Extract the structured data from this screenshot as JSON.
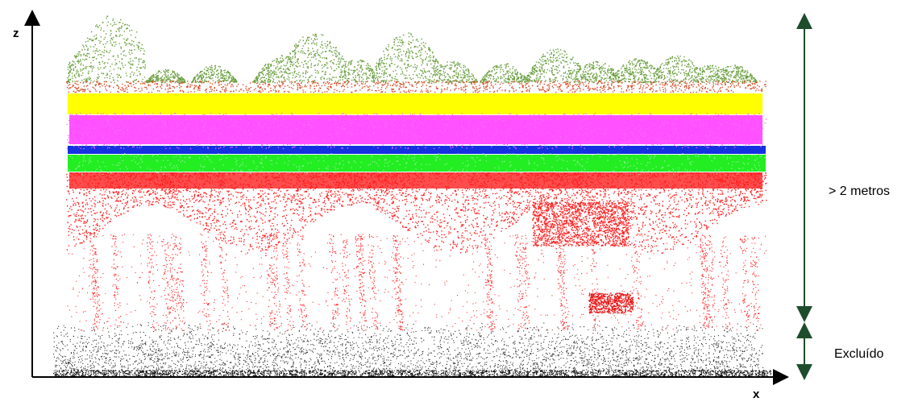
{
  "axes": {
    "z": "z",
    "x": "x"
  },
  "annotations": {
    "upper": "> 2 metros",
    "lower": "Excluído"
  }
}
